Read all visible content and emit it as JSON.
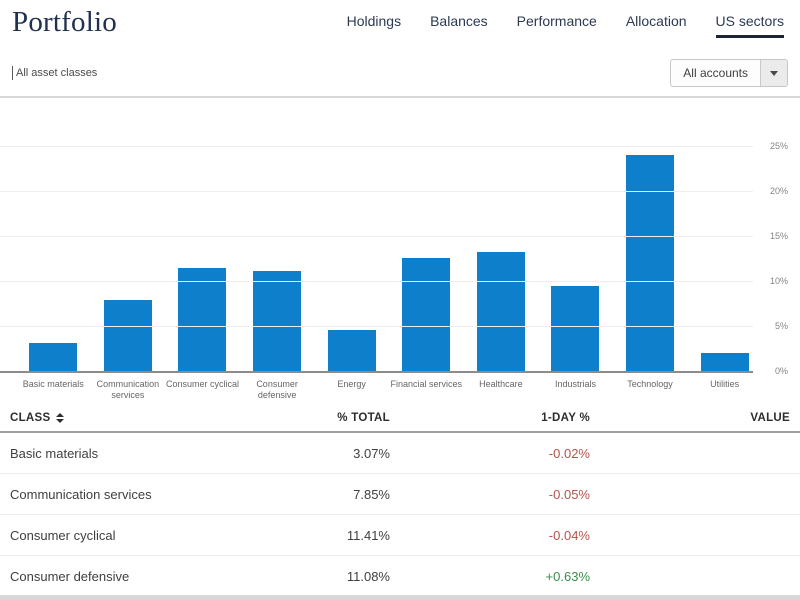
{
  "page_title": "Portfolio",
  "tabs": [
    {
      "label": "Holdings",
      "active": false
    },
    {
      "label": "Balances",
      "active": false
    },
    {
      "label": "Performance",
      "active": false
    },
    {
      "label": "Allocation",
      "active": false
    },
    {
      "label": "US sectors",
      "active": true
    }
  ],
  "filters": {
    "asset_class_label": "All asset classes",
    "accounts_select_value": "All accounts"
  },
  "chart_data": {
    "type": "bar",
    "title": "",
    "categories": [
      "Basic materials",
      "Communication services",
      "Consumer cyclical",
      "Consumer defensive",
      "Energy",
      "Financial services",
      "Healthcare",
      "Industrials",
      "Technology",
      "Utilities"
    ],
    "categories_display": [
      "Basic materials",
      "Communication\nservices",
      "Consumer cyclical",
      "Consumer\ndefensive",
      "Energy",
      "Financial services",
      "Healthcare",
      "Industrials",
      "Technology",
      "Utilities"
    ],
    "values": [
      3.07,
      7.85,
      11.41,
      11.08,
      4.6,
      12.6,
      13.2,
      9.5,
      24.0,
      2.0
    ],
    "value_unit": "percent",
    "xlabel": "",
    "ylabel": "",
    "ylim": [
      0,
      25
    ],
    "yticks": [
      "0%",
      "5%",
      "10%",
      "15%",
      "20%",
      "25%"
    ],
    "ytick_side": "right",
    "grid": true,
    "legend": false,
    "bar_color": "#0e80cb"
  },
  "table": {
    "columns": [
      {
        "label": "CLASS",
        "sortable": true
      },
      {
        "label": "% TOTAL",
        "sortable": false
      },
      {
        "label": "1-DAY %",
        "sortable": false
      },
      {
        "label": "VALUE",
        "sortable": false
      }
    ],
    "rows": [
      {
        "class": "Basic materials",
        "total": "3.07%",
        "one_day": "-0.02%",
        "one_day_sign": "negative",
        "value": ""
      },
      {
        "class": "Communication services",
        "total": "7.85%",
        "one_day": "-0.05%",
        "one_day_sign": "negative",
        "value": ""
      },
      {
        "class": "Consumer cyclical",
        "total": "11.41%",
        "one_day": "-0.04%",
        "one_day_sign": "negative",
        "value": ""
      },
      {
        "class": "Consumer defensive",
        "total": "11.08%",
        "one_day": "+0.63%",
        "one_day_sign": "positive",
        "value": ""
      }
    ]
  },
  "colors": {
    "bar_blue": "#0e80cb",
    "negative_red": "#b3544c",
    "positive_green": "#3e8c49",
    "title_ink": "#203150",
    "active_tab_underline": "#1b2433"
  }
}
